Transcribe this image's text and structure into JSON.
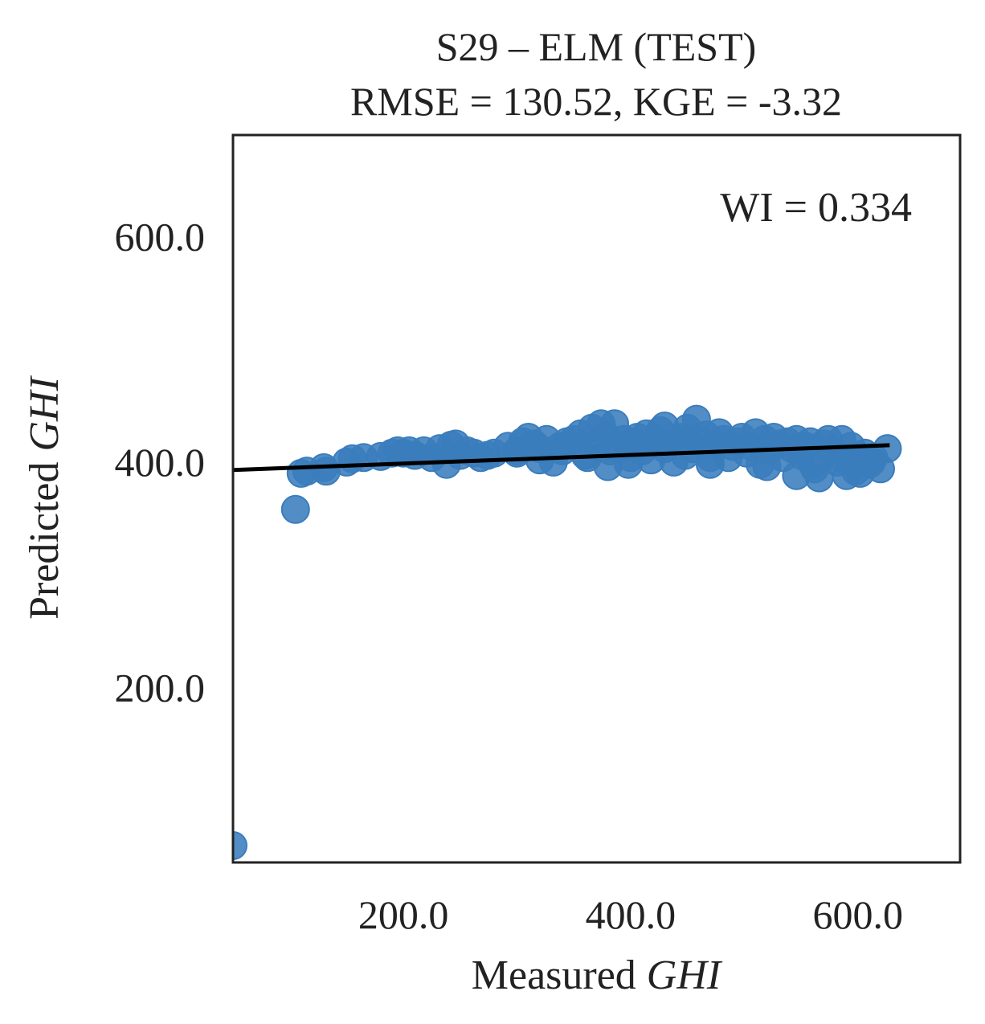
{
  "chart_data": {
    "type": "scatter",
    "title": "S29 – ELM (TEST)",
    "subtitle": "RMSE = 130.52, KGE = -3.32",
    "xlabel": {
      "text": "Measured ",
      "italic": "GHI"
    },
    "ylabel": {
      "text": "Predicted ",
      "italic": "GHI"
    },
    "annotation": "WI = 0.334",
    "xlim": [
      50,
      690
    ],
    "ylim": [
      45,
      690
    ],
    "xticks": [
      200,
      400,
      600
    ],
    "yticks": [
      200,
      400,
      600
    ],
    "xtick_labels": [
      "200.0",
      "400.0",
      "600.0"
    ],
    "ytick_labels": [
      "200.0",
      "400.0",
      "600.0"
    ],
    "grid": false,
    "point_color": "#3a7dbd",
    "line_color": "#000000",
    "fit_line": {
      "x": [
        50,
        628
      ],
      "y": [
        393,
        415
      ]
    },
    "points": {
      "x": [
        50,
        105,
        110,
        115,
        130,
        132,
        150,
        155,
        165,
        180,
        190,
        195,
        200,
        205,
        210,
        218,
        225,
        232,
        238,
        242,
        246,
        250,
        256,
        262,
        268,
        274,
        280,
        292,
        300,
        305,
        310,
        315,
        320,
        326,
        332,
        338,
        344,
        350,
        356,
        362,
        366,
        370,
        374,
        378,
        382,
        386,
        390,
        394,
        398,
        402,
        406,
        410,
        414,
        418,
        422,
        426,
        430,
        434,
        438,
        442,
        446,
        450,
        454,
        458,
        462,
        466,
        470,
        474,
        478,
        482,
        486,
        490,
        494,
        498,
        502,
        506,
        510,
        514,
        518,
        522,
        526,
        530,
        534,
        538,
        542,
        546,
        550,
        554,
        558,
        562,
        566,
        570,
        574,
        578,
        582,
        586,
        590,
        594,
        598,
        602,
        606,
        610,
        614,
        620,
        626,
        612,
        598,
        584,
        560,
        546,
        520,
        470,
        448,
        430,
        400,
        380,
        360,
        340,
        320,
        300
      ],
      "y": [
        60,
        358,
        390,
        392,
        395,
        392,
        400,
        403,
        404,
        405,
        408,
        410,
        408,
        410,
        406,
        410,
        404,
        412,
        398,
        415,
        416,
        406,
        410,
        408,
        404,
        406,
        408,
        414,
        410,
        418,
        422,
        416,
        412,
        420,
        400,
        414,
        418,
        420,
        425,
        404,
        430,
        416,
        434,
        424,
        410,
        434,
        412,
        420,
        398,
        418,
        422,
        410,
        425,
        402,
        420,
        428,
        432,
        416,
        400,
        418,
        422,
        430,
        412,
        438,
        418,
        424,
        398,
        416,
        426,
        420,
        404,
        414,
        418,
        422,
        408,
        414,
        426,
        398,
        420,
        410,
        422,
        416,
        404,
        418,
        412,
        420,
        406,
        414,
        418,
        394,
        386,
        416,
        420,
        410,
        400,
        420,
        388,
        414,
        402,
        390,
        408,
        398,
        404,
        394,
        412,
        400,
        392,
        404,
        398,
        388,
        396,
        404,
        406,
        412,
        404,
        396,
        406,
        410,
        402,
        408
      ]
    }
  }
}
